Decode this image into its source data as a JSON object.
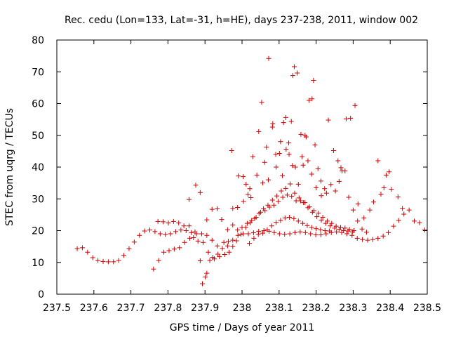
{
  "chart_data": {
    "type": "scatter",
    "title": "Rec. cedu (Lon=133, Lat=-31, h=HE), days 237-238, 2011, window 002",
    "xlabel": "GPS time / Days of year 2011",
    "ylabel": "STEC from uqrg / TECUs",
    "xlim": [
      237.5,
      238.5
    ],
    "ylim": [
      0,
      80
    ],
    "x_ticks": [
      237.5,
      237.6,
      237.7,
      237.8,
      237.9,
      238.0,
      238.1,
      238.2,
      238.3,
      238.4,
      238.5
    ],
    "x_tick_labels": [
      "237.5",
      "237.6",
      "237.7",
      "237.8",
      "237.9",
      "238",
      "238.1",
      "238.2",
      "238.3",
      "238.4",
      "238.5"
    ],
    "y_ticks": [
      0,
      10,
      20,
      30,
      40,
      50,
      60,
      70,
      80
    ],
    "y_tick_labels": [
      "0",
      "10",
      "20",
      "30",
      "40",
      "50",
      "60",
      "70",
      "80"
    ],
    "grid": false,
    "marker": "+",
    "color": "#cc0000",
    "points": [
      [
        237.555,
        14.3
      ],
      [
        237.569,
        14.6
      ],
      [
        237.583,
        13.2
      ],
      [
        237.597,
        11.5
      ],
      [
        237.611,
        10.6
      ],
      [
        237.625,
        10.3
      ],
      [
        237.639,
        10.2
      ],
      [
        237.653,
        10.2
      ],
      [
        237.667,
        10.6
      ],
      [
        237.681,
        12.2
      ],
      [
        237.695,
        14.3
      ],
      [
        237.709,
        16.4
      ],
      [
        237.723,
        18.5
      ],
      [
        237.737,
        19.9
      ],
      [
        237.751,
        20.2
      ],
      [
        237.765,
        19.7
      ],
      [
        237.779,
        19.0
      ],
      [
        237.793,
        18.8
      ],
      [
        237.807,
        19.0
      ],
      [
        237.821,
        19.7
      ],
      [
        237.835,
        20.2
      ],
      [
        237.849,
        20.0
      ],
      [
        237.863,
        19.4
      ],
      [
        237.877,
        19.0
      ],
      [
        237.891,
        19.0
      ],
      [
        237.905,
        18.5
      ],
      [
        237.919,
        17.0
      ],
      [
        237.933,
        15.2
      ],
      [
        237.947,
        14.4
      ],
      [
        237.961,
        15.2
      ],
      [
        237.975,
        17.0
      ],
      [
        237.989,
        18.5
      ],
      [
        238.003,
        19.0
      ],
      [
        238.017,
        19.0
      ],
      [
        238.031,
        19.3
      ],
      [
        238.045,
        19.8
      ],
      [
        238.059,
        20.0
      ],
      [
        238.073,
        19.8
      ],
      [
        238.087,
        19.4
      ],
      [
        238.101,
        19.0
      ],
      [
        238.115,
        18.9
      ],
      [
        238.129,
        19.0
      ],
      [
        238.143,
        19.4
      ],
      [
        238.157,
        19.6
      ],
      [
        238.171,
        19.4
      ],
      [
        238.185,
        19.0
      ],
      [
        238.199,
        18.7
      ],
      [
        238.213,
        18.7
      ],
      [
        238.227,
        19.0
      ],
      [
        238.241,
        19.4
      ],
      [
        238.255,
        19.6
      ],
      [
        238.269,
        19.4
      ],
      [
        238.283,
        19.0
      ],
      [
        238.297,
        18.5
      ],
      [
        238.311,
        17.6
      ],
      [
        238.325,
        17.2
      ],
      [
        238.339,
        17.0
      ],
      [
        238.353,
        17.2
      ],
      [
        238.367,
        17.6
      ],
      [
        238.381,
        18.3
      ],
      [
        238.395,
        19.4
      ],
      [
        238.409,
        21.4
      ],
      [
        238.423,
        23.2
      ],
      [
        238.437,
        25.2
      ],
      [
        238.451,
        26.5
      ],
      [
        238.465,
        23.0
      ],
      [
        238.479,
        22.5
      ],
      [
        238.493,
        20.2
      ],
      [
        237.761,
        7.9
      ],
      [
        237.775,
        10.6
      ],
      [
        237.789,
        13.2
      ],
      [
        237.803,
        13.7
      ],
      [
        237.817,
        14.2
      ],
      [
        237.831,
        14.6
      ],
      [
        237.845,
        16.3
      ],
      [
        237.859,
        17.6
      ],
      [
        237.873,
        19.6
      ],
      [
        237.887,
        10.5
      ],
      [
        237.893,
        3.3
      ],
      [
        237.901,
        5.4
      ],
      [
        237.905,
        6.6
      ],
      [
        237.913,
        10.6
      ],
      [
        237.925,
        11.1
      ],
      [
        237.939,
        11.8
      ],
      [
        237.953,
        12.5
      ],
      [
        237.965,
        13.2
      ],
      [
        237.975,
        15.0
      ],
      [
        237.985,
        16.8
      ],
      [
        237.997,
        18.8
      ],
      [
        238.01,
        21.0
      ],
      [
        238.022,
        22.5
      ],
      [
        238.034,
        23.8
      ],
      [
        238.046,
        25.4
      ],
      [
        238.058,
        26.9
      ],
      [
        238.07,
        28.0
      ],
      [
        238.082,
        29.6
      ],
      [
        238.094,
        30.9
      ],
      [
        238.106,
        32.5
      ],
      [
        238.118,
        33.3
      ],
      [
        238.13,
        34.7
      ],
      [
        238.142,
        31.8
      ],
      [
        238.154,
        30.3
      ],
      [
        238.166,
        28.8
      ],
      [
        238.178,
        27.2
      ],
      [
        238.19,
        25.8
      ],
      [
        238.202,
        24.4
      ],
      [
        238.214,
        23.3
      ],
      [
        238.226,
        22.3
      ],
      [
        238.238,
        21.5
      ],
      [
        238.25,
        20.8
      ],
      [
        238.262,
        20.4
      ],
      [
        238.274,
        20.0
      ],
      [
        238.286,
        19.9
      ],
      [
        238.298,
        19.6
      ],
      [
        237.773,
        22.9
      ],
      [
        237.787,
        22.8
      ],
      [
        237.801,
        22.4
      ],
      [
        237.815,
        22.9
      ],
      [
        237.829,
        22.4
      ],
      [
        237.843,
        21.5
      ],
      [
        237.857,
        21.5
      ],
      [
        237.869,
        17.8
      ],
      [
        237.881,
        16.7
      ],
      [
        237.895,
        16.3
      ],
      [
        237.909,
        13.2
      ],
      [
        237.921,
        11.6
      ],
      [
        237.935,
        12.6
      ],
      [
        237.951,
        16.3
      ],
      [
        237.963,
        16.6
      ],
      [
        237.975,
        21.8
      ],
      [
        237.988,
        20.2
      ],
      [
        238.0,
        21.0
      ],
      [
        238.014,
        22.3
      ],
      [
        238.026,
        23.2
      ],
      [
        238.038,
        24.2
      ],
      [
        238.05,
        25.8
      ],
      [
        238.062,
        26.3
      ],
      [
        238.074,
        27.4
      ],
      [
        238.086,
        28.0
      ],
      [
        238.098,
        29.2
      ],
      [
        238.11,
        30.5
      ],
      [
        238.122,
        31.2
      ],
      [
        238.134,
        30.8
      ],
      [
        238.146,
        29.4
      ],
      [
        238.158,
        29.4
      ],
      [
        238.17,
        28.8
      ],
      [
        238.182,
        27.5
      ],
      [
        238.194,
        26.3
      ],
      [
        238.206,
        25.5
      ],
      [
        238.218,
        24.2
      ],
      [
        238.23,
        23.0
      ],
      [
        238.242,
        22.3
      ],
      [
        238.254,
        21.4
      ],
      [
        238.266,
        21.0
      ],
      [
        238.278,
        20.8
      ],
      [
        238.29,
        20.4
      ],
      [
        238.302,
        20.0
      ],
      [
        237.857,
        29.8
      ],
      [
        237.875,
        34.3
      ],
      [
        237.887,
        32.0
      ],
      [
        237.905,
        23.4
      ],
      [
        237.919,
        26.7
      ],
      [
        237.933,
        26.9
      ],
      [
        237.945,
        23.5
      ],
      [
        237.961,
        20.3
      ],
      [
        237.975,
        27.0
      ],
      [
        237.988,
        27.3
      ],
      [
        238.003,
        37.0
      ],
      [
        238.011,
        34.6
      ],
      [
        238.021,
        33.2
      ],
      [
        238.029,
        43.3
      ],
      [
        238.045,
        51.2
      ],
      [
        238.053,
        60.4
      ],
      [
        238.061,
        41.5
      ],
      [
        238.071,
        36.0
      ],
      [
        238.083,
        53.7
      ],
      [
        238.091,
        44.0
      ],
      [
        238.101,
        44.3
      ],
      [
        238.109,
        37.3
      ],
      [
        238.119,
        45.6
      ],
      [
        238.127,
        44.0
      ],
      [
        238.133,
        54.4
      ],
      [
        238.137,
        68.8
      ],
      [
        238.141,
        71.6
      ],
      [
        238.149,
        69.6
      ],
      [
        238.159,
        50.3
      ],
      [
        238.165,
        40.6
      ],
      [
        238.173,
        49.5
      ],
      [
        238.181,
        61.0
      ],
      [
        238.189,
        61.5
      ],
      [
        238.193,
        67.3
      ],
      [
        238.197,
        47.0
      ],
      [
        238.205,
        39.5
      ],
      [
        238.213,
        35.6
      ],
      [
        238.223,
        33.2
      ],
      [
        238.233,
        54.8
      ],
      [
        238.247,
        45.2
      ],
      [
        238.259,
        42.0
      ],
      [
        238.267,
        39.8
      ],
      [
        238.281,
        55.2
      ],
      [
        238.293,
        55.4
      ],
      [
        238.305,
        59.4
      ],
      [
        238.313,
        28.4
      ],
      [
        238.329,
        24.0
      ],
      [
        238.345,
        26.5
      ],
      [
        238.355,
        29.0
      ],
      [
        238.367,
        42.0
      ],
      [
        238.375,
        31.5
      ],
      [
        238.383,
        33.5
      ],
      [
        238.389,
        37.5
      ],
      [
        238.397,
        38.5
      ],
      [
        238.403,
        33.0
      ],
      [
        238.421,
        30.6
      ],
      [
        238.433,
        27.0
      ],
      [
        237.972,
        45.2
      ],
      [
        237.99,
        37.2
      ],
      [
        238.004,
        29.2
      ],
      [
        238.016,
        31.4
      ],
      [
        238.024,
        30.4
      ],
      [
        238.04,
        37.5
      ],
      [
        238.056,
        35.0
      ],
      [
        238.066,
        46.3
      ],
      [
        238.072,
        74.2
      ],
      [
        238.082,
        52.6
      ],
      [
        238.092,
        40.0
      ],
      [
        238.104,
        48.0
      ],
      [
        238.112,
        54.0
      ],
      [
        238.118,
        55.6
      ],
      [
        238.126,
        47.6
      ],
      [
        238.136,
        40.5
      ],
      [
        238.144,
        40.0
      ],
      [
        238.152,
        34.6
      ],
      [
        238.162,
        43.3
      ],
      [
        238.17,
        50.0
      ],
      [
        238.178,
        42.0
      ],
      [
        238.188,
        37.8
      ],
      [
        238.2,
        33.5
      ],
      [
        238.214,
        31.0
      ],
      [
        238.228,
        31.8
      ],
      [
        238.24,
        34.5
      ],
      [
        238.252,
        32.5
      ],
      [
        238.262,
        35.5
      ],
      [
        238.27,
        38.8
      ],
      [
        238.278,
        38.8
      ],
      [
        238.288,
        30.5
      ],
      [
        238.3,
        26.5
      ],
      [
        238.312,
        23.0
      ],
      [
        238.324,
        20.5
      ],
      [
        238.336,
        19.5
      ],
      [
        238.02,
        16.0
      ],
      [
        238.032,
        17.6
      ],
      [
        238.044,
        18.8
      ],
      [
        238.056,
        19.2
      ],
      [
        238.068,
        20.3
      ],
      [
        238.08,
        21.5
      ],
      [
        238.092,
        22.6
      ],
      [
        238.104,
        23.2
      ],
      [
        238.116,
        24.0
      ],
      [
        238.128,
        24.2
      ],
      [
        238.14,
        23.8
      ],
      [
        238.152,
        23.0
      ],
      [
        238.164,
        22.3
      ],
      [
        238.176,
        21.6
      ],
      [
        238.188,
        21.0
      ],
      [
        238.2,
        20.6
      ],
      [
        238.212,
        20.3
      ],
      [
        238.224,
        20.0
      ],
      [
        238.236,
        19.9
      ]
    ]
  }
}
